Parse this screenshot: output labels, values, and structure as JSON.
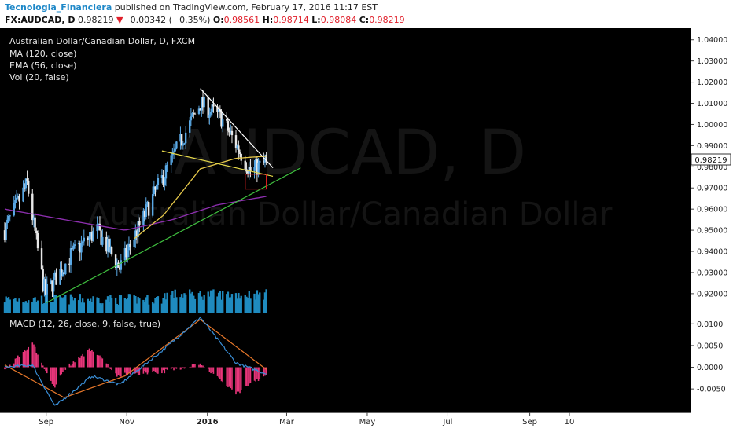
{
  "header": {
    "author": "Tecnologia_Financiera",
    "published_text": "published on TradingView.com, February 17, 2016 11:17 EST",
    "symbol": "FX:AUDCAD, D",
    "last": "0.98219",
    "change_arrow": "▼",
    "change": "−0.00342 (−0.35%)",
    "o_label": "O:",
    "o": "0.98561",
    "h_label": "H:",
    "h": "0.98714",
    "l_label": "L:",
    "l": "0.98084",
    "c_label": "C:",
    "c": "0.98219"
  },
  "legend": {
    "title": "Australian Dollar/Canadian Dollar, D, FXCM",
    "ma": "MA (120, close)",
    "ema": "EMA (56, close)",
    "vol": "Vol (20, false)"
  },
  "watermark": {
    "big": "AUDCAD, D",
    "small": "Australian Dollar/Canadian Dollar"
  },
  "price_badge": "0.98219",
  "macd_label": "MACD (12, 26, close, 9, false, true)",
  "colors": {
    "background": "#000000",
    "candle_up": "#5aa9e6",
    "candle_down": "#e8e8e8",
    "ma": "#8e2fb0",
    "ema": "#e6c84a",
    "volume": "#1f8bbf",
    "trend_green": "#3fbf3f",
    "trend_white": "#ffffff",
    "trend_yellow": "#e6d94a",
    "highlight_box": "#e02020",
    "macd_line": "#3a8fd8",
    "signal_line": "#e8782a",
    "histogram": "#e8357a"
  },
  "chart_data": [
    {
      "type": "candlestick",
      "title": "Australian Dollar/Canadian Dollar, D, FXCM",
      "symbol": "FX:AUDCAD",
      "timeframe": "D",
      "x_ticks": [
        "Sep",
        "Nov",
        "2016",
        "Mar",
        "May",
        "Jul",
        "Sep",
        "10"
      ],
      "y_ticks": [
        "1.04000",
        "1.03000",
        "1.02000",
        "1.01000",
        "1.00000",
        "0.99000",
        "0.98000",
        "0.97000",
        "0.96000",
        "0.95000",
        "0.94000",
        "0.93000",
        "0.92000"
      ],
      "ylim": [
        0.9155,
        1.0425
      ],
      "last_price": 0.98219,
      "ohlc_last": {
        "open": 0.98561,
        "high": 0.98714,
        "low": 0.98084,
        "close": 0.98219
      },
      "grid": false,
      "close_path_approx": [
        {
          "date": "2015-08-03",
          "close": 0.95
        },
        {
          "date": "2015-08-20",
          "close": 0.972
        },
        {
          "date": "2015-09-01",
          "close": 0.925
        },
        {
          "date": "2015-09-03",
          "close": 0.92
        },
        {
          "date": "2015-09-22",
          "close": 0.938
        },
        {
          "date": "2015-10-12",
          "close": 0.95
        },
        {
          "date": "2015-10-29",
          "close": 0.932
        },
        {
          "date": "2015-11-25",
          "close": 0.968
        },
        {
          "date": "2015-12-29",
          "close": 1.01
        },
        {
          "date": "2016-01-14",
          "close": 1.003
        },
        {
          "date": "2016-02-05",
          "close": 0.978
        },
        {
          "date": "2016-02-17",
          "close": 0.982
        }
      ],
      "indicators": [
        {
          "name": "MA (120, close)",
          "path_approx": [
            {
              "date": "2015-08-03",
              "value": 0.96
            },
            {
              "date": "2015-09-17",
              "value": 0.955
            },
            {
              "date": "2015-11-02",
              "value": 0.95
            },
            {
              "date": "2015-12-08",
              "value": 0.955
            },
            {
              "date": "2016-01-11",
              "value": 0.962
            },
            {
              "date": "2016-02-17",
              "value": 0.966
            }
          ]
        },
        {
          "name": "EMA (56, close)",
          "path_approx": [
            {
              "date": "2015-11-09",
              "value": 0.946
            },
            {
              "date": "2015-12-01",
              "value": 0.957
            },
            {
              "date": "2015-12-29",
              "value": 0.979
            },
            {
              "date": "2016-01-25",
              "value": 0.984
            },
            {
              "date": "2016-02-17",
              "value": 0.985
            }
          ]
        }
      ],
      "trendlines": [
        {
          "color": "green",
          "from": {
            "date": "2015-09-03",
            "price": 0.9155
          },
          "to": {
            "date": "2016-03-14",
            "price": 0.9795
          }
        },
        {
          "color": "white",
          "from": {
            "date": "2015-12-29",
            "price": 1.017
          },
          "to": {
            "date": "2016-02-22",
            "price": 0.9795
          }
        },
        {
          "color": "yellow",
          "from": {
            "date": "2015-11-30",
            "price": 0.9875
          },
          "to": {
            "date": "2016-02-22",
            "price": 0.9755
          }
        }
      ],
      "highlight_box": {
        "date_from": "2016-02-01",
        "date_to": "2016-02-17",
        "price_low": 0.9695,
        "price_high": 0.9765
      }
    },
    {
      "type": "bar",
      "title": "Vol (20, false)",
      "note": "volume histogram at bottom of main pane, no axis"
    },
    {
      "type": "line",
      "title": "MACD (12, 26, close, 9, false, true)",
      "y_ticks": [
        "0.0100",
        "0.0050",
        "0.0000",
        "-0.0050"
      ],
      "ylim": [
        -0.0095,
        0.0115
      ],
      "series": [
        {
          "name": "MACD",
          "values_approx": [
            {
              "date": "2015-08-03",
              "value": 0.0
            },
            {
              "date": "2015-08-24",
              "value": 0.0005
            },
            {
              "date": "2015-09-10",
              "value": -0.009
            },
            {
              "date": "2015-10-08",
              "value": -0.002
            },
            {
              "date": "2015-10-29",
              "value": -0.004
            },
            {
              "date": "2015-12-01",
              "value": 0.004
            },
            {
              "date": "2015-12-29",
              "value": 0.0115
            },
            {
              "date": "2016-01-25",
              "value": 0.001
            },
            {
              "date": "2016-02-17",
              "value": -0.0015
            }
          ]
        },
        {
          "name": "Signal",
          "values_approx": [
            {
              "date": "2015-08-03",
              "value": 0.0005
            },
            {
              "date": "2015-09-17",
              "value": -0.007
            },
            {
              "date": "2015-11-02",
              "value": -0.002
            },
            {
              "date": "2015-12-29",
              "value": 0.011
            },
            {
              "date": "2016-02-17",
              "value": -0.0005
            }
          ]
        }
      ]
    }
  ]
}
